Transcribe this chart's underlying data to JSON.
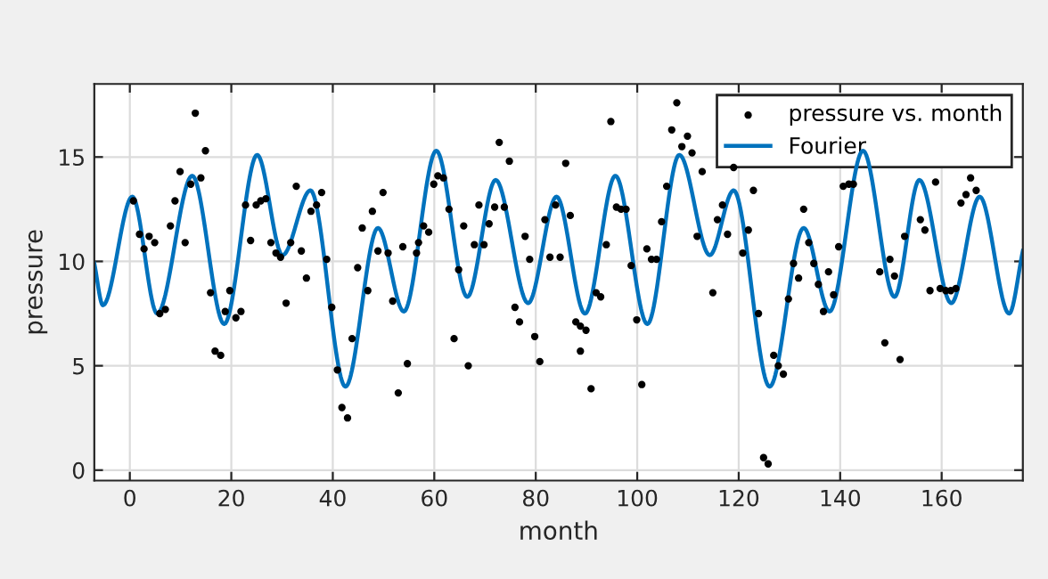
{
  "chart_data": {
    "type": "scatter",
    "xlabel": "month",
    "ylabel": "pressure",
    "xlim": [
      -7,
      176
    ],
    "ylim": [
      -0.5,
      18.5
    ],
    "xticks": [
      0,
      20,
      40,
      60,
      80,
      100,
      120,
      140,
      160
    ],
    "yticks": [
      0,
      5,
      10,
      15
    ],
    "grid": true,
    "legend": "top right",
    "series": [
      {
        "name": "pressure vs. month",
        "marker": "circle",
        "color": "#000000",
        "x": [
          0.7,
          1.9,
          2.8,
          3.8,
          4.9,
          5.9,
          7.0,
          8.0,
          8.9,
          9.9,
          10.9,
          12.0,
          12.9,
          14.0,
          14.9,
          15.9,
          16.8,
          17.9,
          18.8,
          19.7,
          20.9,
          21.9,
          22.8,
          23.8,
          24.9,
          25.8,
          26.8,
          27.8,
          28.8,
          29.7,
          30.8,
          31.7,
          32.8,
          33.8,
          34.8,
          35.7,
          36.8,
          37.8,
          38.8,
          39.8,
          40.9,
          41.8,
          42.9,
          43.8,
          44.9,
          45.8,
          46.9,
          47.8,
          48.9,
          49.9,
          50.9,
          51.8,
          52.9,
          53.8,
          54.7,
          56.5,
          56.9,
          57.9,
          58.9,
          59.9,
          60.7,
          61.8,
          62.9,
          63.9,
          64.8,
          65.8,
          66.7,
          67.9,
          68.8,
          69.8,
          70.8,
          71.9,
          72.8,
          73.8,
          74.8,
          75.9,
          76.8,
          77.9,
          78.8,
          79.8,
          80.8,
          81.8,
          82.8,
          83.9,
          84.8,
          85.9,
          86.8,
          87.9,
          88.8,
          88.8,
          89.9,
          90.9,
          91.9,
          92.8,
          93.9,
          94.8,
          95.9,
          96.8,
          97.8,
          98.8,
          99.9,
          100.9,
          101.9,
          102.8,
          103.8,
          104.8,
          105.8,
          106.8,
          107.8,
          108.8,
          109.9,
          110.8,
          111.8,
          112.8,
          114.9,
          115.8,
          116.8,
          117.8,
          119.0,
          120.8,
          121.9,
          122.9,
          123.9,
          124.9,
          125.8,
          126.9,
          127.8,
          128.8,
          129.8,
          130.8,
          131.8,
          132.8,
          133.8,
          134.8,
          135.7,
          136.7,
          137.7,
          138.7,
          139.7,
          140.6,
          141.7,
          142.6,
          147.8,
          148.8,
          149.8,
          150.7,
          151.8,
          152.7,
          155.8,
          156.7,
          157.7,
          158.8,
          159.7,
          160.8,
          161.8,
          162.8,
          163.8,
          164.8,
          165.7,
          166.8
        ],
        "values": [
          12.9,
          11.3,
          10.6,
          11.2,
          10.9,
          7.5,
          7.7,
          11.7,
          12.9,
          14.3,
          10.9,
          13.7,
          17.1,
          14.0,
          15.3,
          8.5,
          5.7,
          5.5,
          7.6,
          8.6,
          7.3,
          7.6,
          12.7,
          11.0,
          12.7,
          12.9,
          13.0,
          10.9,
          10.4,
          10.2,
          8.0,
          10.9,
          13.6,
          10.5,
          9.2,
          12.4,
          12.7,
          13.3,
          10.1,
          7.8,
          4.8,
          3.0,
          2.5,
          6.3,
          9.7,
          11.6,
          8.6,
          12.4,
          10.5,
          13.3,
          10.4,
          8.1,
          3.7,
          10.7,
          5.1,
          10.4,
          10.9,
          11.7,
          11.4,
          13.7,
          14.1,
          14.0,
          12.5,
          6.3,
          9.6,
          11.7,
          5.0,
          10.8,
          12.7,
          10.8,
          11.8,
          12.6,
          15.7,
          12.6,
          14.8,
          7.8,
          7.1,
          11.2,
          10.1,
          6.4,
          5.2,
          12.0,
          10.2,
          12.7,
          10.2,
          14.7,
          12.2,
          7.1,
          6.9,
          5.7,
          6.7,
          3.9,
          8.5,
          8.3,
          10.8,
          16.7,
          12.6,
          12.5,
          12.5,
          9.8,
          7.2,
          4.1,
          10.6,
          10.1,
          10.1,
          11.9,
          13.6,
          16.3,
          17.6,
          15.5,
          16.0,
          15.2,
          11.2,
          14.3,
          8.5,
          12.0,
          12.7,
          11.3,
          14.5,
          10.4,
          11.5,
          13.4,
          7.5,
          0.6,
          0.3,
          5.5,
          5.0,
          4.6,
          8.2,
          9.9,
          9.2,
          12.5,
          10.9,
          9.9,
          8.9,
          7.6,
          9.5,
          8.4,
          10.7,
          13.6,
          13.7,
          13.7,
          9.5,
          6.1,
          10.1,
          9.3,
          5.3,
          11.2,
          12.0,
          11.5,
          8.6,
          13.8,
          8.7,
          8.6,
          8.6,
          8.7,
          12.8,
          13.2,
          14.0,
          13.4
        ]
      },
      {
        "name": "Fourier",
        "type": "line",
        "line_style": "solid",
        "color": "#0072bd",
        "x": [
          -7,
          -5.3,
          0.5,
          5.4,
          12.3,
          18.6,
          25.1,
          30.1,
          35.6,
          42.5,
          48.9,
          54,
          60.4,
          66.5,
          72.1,
          78.5,
          84.1,
          89.7,
          95.7,
          102,
          108.3,
          114.3,
          119,
          126.1,
          132.8,
          137.9,
          144.5,
          150.7,
          155.6,
          161.9,
          167.5,
          173.3,
          176
        ],
        "values": [
          9.9,
          7.9,
          13.1,
          7.5,
          14.1,
          7.0,
          15.1,
          10.3,
          13.4,
          4.0,
          11.6,
          7.6,
          15.3,
          8.3,
          13.9,
          8.0,
          13.1,
          7.5,
          14.1,
          7.0,
          15.1,
          10.3,
          13.4,
          4.0,
          11.6,
          7.6,
          15.3,
          8.3,
          13.9,
          8.0,
          13.1,
          7.5,
          10.5
        ]
      }
    ]
  }
}
